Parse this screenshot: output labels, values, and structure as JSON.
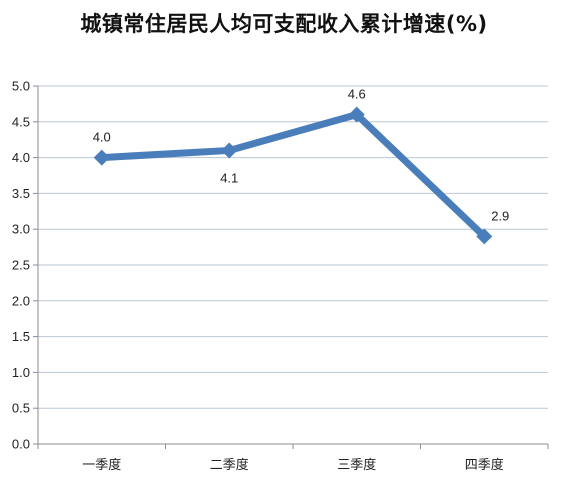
{
  "chart_data": {
    "type": "line",
    "title": "城镇常住居民人均可支配收入累计增速(%)",
    "xlabel": "",
    "ylabel": "",
    "categories": [
      "一季度",
      "二季度",
      "三季度",
      "四季度"
    ],
    "series": [
      {
        "values": [
          4.0,
          4.1,
          4.6,
          2.9
        ],
        "data_labels": [
          "4.0",
          "4.1",
          "4.6",
          "2.9"
        ],
        "label_positions": [
          "above",
          "below",
          "above",
          "above"
        ],
        "color": "#4a7ebb",
        "marker": "diamond"
      }
    ],
    "ylim": [
      0,
      5
    ],
    "yticks": [
      "0.0",
      "0.5",
      "1.0",
      "1.5",
      "2.0",
      "2.5",
      "3.0",
      "3.5",
      "4.0",
      "4.5",
      "5.0"
    ],
    "grid": true,
    "grid_color": "#b9c7d6",
    "axis_color": "#8c8c8c",
    "legend": "none"
  }
}
